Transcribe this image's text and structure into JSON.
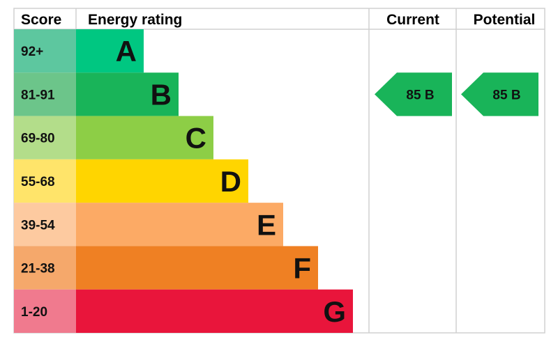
{
  "chart_data": {
    "type": "bar",
    "headers": {
      "score": "Score",
      "rating": "Energy rating",
      "current": "Current",
      "potential": "Potential"
    },
    "bands": [
      {
        "letter": "A",
        "range": "92+",
        "color": "#00c781",
        "score_color": "#5dc79f"
      },
      {
        "letter": "B",
        "range": "81-91",
        "color": "#19b459",
        "score_color": "#6cc58a"
      },
      {
        "letter": "C",
        "range": "69-80",
        "color": "#8dce46",
        "score_color": "#b3dd8a"
      },
      {
        "letter": "D",
        "range": "55-68",
        "color": "#ffd500",
        "score_color": "#ffe46a"
      },
      {
        "letter": "E",
        "range": "39-54",
        "color": "#fcaa65",
        "score_color": "#fdcaa0"
      },
      {
        "letter": "F",
        "range": "21-38",
        "color": "#ef8023",
        "score_color": "#f5a86b"
      },
      {
        "letter": "G",
        "range": "1-20",
        "color": "#e9153b",
        "score_color": "#f07a8e"
      }
    ],
    "current": {
      "score": 85,
      "band": "B",
      "label": "85  B",
      "color": "#19b459"
    },
    "potential": {
      "score": 85,
      "band": "B",
      "label": "85  B",
      "color": "#19b459"
    }
  }
}
